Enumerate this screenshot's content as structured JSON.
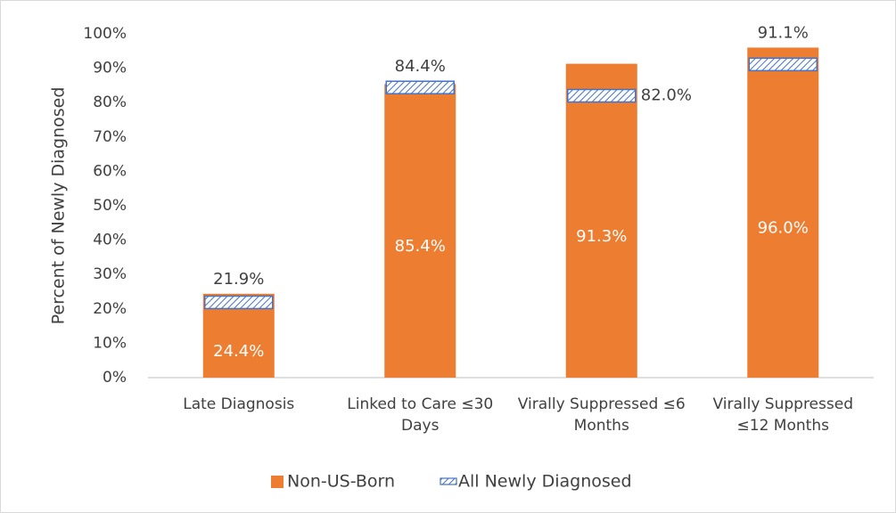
{
  "chart_data": {
    "type": "bar",
    "y_label": "Percent of Newly Diagnosed",
    "categories": [
      "Late Diagnosis",
      "Linked to Care ≤30 Days",
      "Virally Suppressed ≤6 Months",
      "Virally Suppressed ≤12 Months"
    ],
    "series": [
      {
        "name": "Non-US-Born",
        "color": "#ed7d31",
        "values": [
          24.4,
          85.4,
          91.3,
          96.0
        ],
        "value_labels": [
          "24.4%",
          "85.4%",
          "91.3%",
          "96.0%"
        ]
      },
      {
        "name": "All Newly Diagnosed",
        "color": "#4472c4",
        "values": [
          21.9,
          84.4,
          82.0,
          91.1
        ],
        "value_labels": [
          "21.9%",
          "84.4%",
          "82.0%",
          "91.1%"
        ]
      }
    ],
    "ylim": [
      0,
      100
    ],
    "yticks": [
      {
        "value": 0,
        "label": "0%"
      },
      {
        "value": 10,
        "label": "10%"
      },
      {
        "value": 20,
        "label": "20%"
      },
      {
        "value": 30,
        "label": "30%"
      },
      {
        "value": 40,
        "label": "40%"
      },
      {
        "value": 50,
        "label": "50%"
      },
      {
        "value": 60,
        "label": "60%"
      },
      {
        "value": 70,
        "label": "70%"
      },
      {
        "value": 80,
        "label": "80%"
      },
      {
        "value": 90,
        "label": "90%"
      },
      {
        "value": 100,
        "label": "100%"
      }
    ],
    "grid": false,
    "legend": "bottom"
  }
}
